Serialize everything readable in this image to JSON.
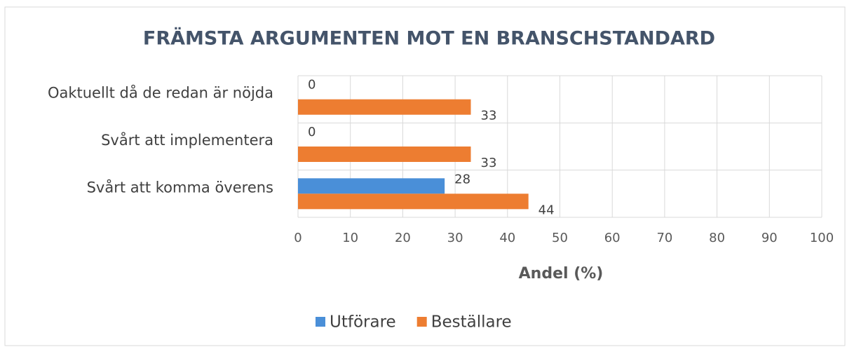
{
  "chart_data": {
    "type": "bar",
    "orientation": "horizontal",
    "title": "FRÄMSTA ARGUMENTEN MOT EN BRANSCHSTANDARD",
    "categories": [
      "Oaktuellt då de redan är nöjda",
      "Svårt att implementera",
      "Svårt att komma överens"
    ],
    "series": [
      {
        "name": "Utförare",
        "color": "#4a8fd8",
        "values": [
          0,
          0,
          28
        ]
      },
      {
        "name": "Beställare",
        "color": "#ed7d31",
        "values": [
          33,
          33,
          44
        ]
      }
    ],
    "xlabel": "Andel (%)",
    "xlim": [
      0,
      100
    ],
    "xticks": [
      0,
      10,
      20,
      30,
      40,
      50,
      60,
      70,
      80,
      90,
      100
    ],
    "grid": true,
    "legend": "bottom"
  }
}
